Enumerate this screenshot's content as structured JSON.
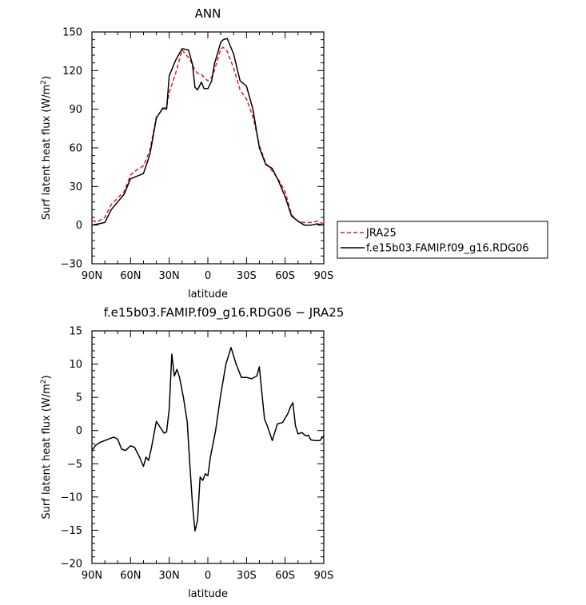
{
  "chart_data": [
    {
      "type": "line",
      "title": "ANN",
      "xlabel": "latitude",
      "ylabel": "Surf latent heat flux (W/m",
      "ylabel_sup": "2",
      "ylabel_end": ")",
      "xlim": [
        90,
        -90
      ],
      "ylim": [
        -30,
        150
      ],
      "yticks": [
        -30,
        0,
        30,
        60,
        90,
        120,
        150
      ],
      "xticks": [
        90,
        60,
        30,
        0,
        -30,
        -60,
        -90
      ],
      "xticklabels": [
        "90N",
        "60N",
        "30N",
        "0",
        "30S",
        "60S",
        "90S"
      ],
      "legend": {
        "placement": "right"
      },
      "series": [
        {
          "name": "JRA25",
          "color": "#e41a1c",
          "dash": true,
          "x": [
            90,
            85,
            80,
            75,
            70,
            65,
            60,
            55,
            50,
            45,
            40,
            35,
            32,
            30,
            25,
            20,
            15,
            12,
            10,
            8,
            5,
            3,
            0,
            -3,
            -5,
            -8,
            -10,
            -12,
            -15,
            -20,
            -25,
            -30,
            -35,
            -40,
            -45,
            -50,
            -55,
            -60,
            -65,
            -70,
            -75,
            -80,
            -85,
            -90
          ],
          "y": [
            3,
            3,
            6,
            16,
            21,
            26,
            39,
            43,
            46,
            58,
            84,
            90,
            92,
            103,
            118,
            136,
            130,
            125,
            120,
            118,
            117,
            115,
            112,
            115,
            120,
            130,
            137,
            138,
            135,
            122,
            105,
            98,
            84,
            62,
            48,
            42,
            35,
            26,
            8,
            3,
            2,
            2,
            3,
            1
          ]
        },
        {
          "name": "f.e15b03.FAMIP.f09_g16.RDG06",
          "color": "#000000",
          "dash": false,
          "x": [
            90,
            85,
            80,
            75,
            70,
            65,
            60,
            55,
            50,
            45,
            40,
            35,
            32,
            30,
            25,
            20,
            15,
            12,
            10,
            8,
            5,
            3,
            0,
            -3,
            -5,
            -8,
            -10,
            -12,
            -15,
            -20,
            -25,
            -30,
            -35,
            -40,
            -45,
            -50,
            -55,
            -60,
            -65,
            -70,
            -75,
            -80,
            -85,
            -90
          ],
          "y": [
            0,
            1,
            2,
            12,
            18,
            24,
            36,
            38,
            40,
            55,
            83,
            91,
            90,
            116,
            128,
            137,
            136,
            125,
            107,
            105,
            111,
            106,
            106,
            112,
            125,
            135,
            142,
            144,
            145,
            133,
            112,
            108,
            90,
            60,
            47,
            44,
            34,
            22,
            7,
            3,
            0,
            0,
            1,
            0
          ]
        }
      ]
    },
    {
      "type": "line",
      "title": "f.e15b03.FAMIP.f09_g16.RDG06 − JRA25",
      "xlabel": "latitude",
      "ylabel": "Surf latent heat flux (W/m",
      "ylabel_sup": "2",
      "ylabel_end": ")",
      "xlim": [
        90,
        -90
      ],
      "ylim": [
        -20,
        15
      ],
      "yticks": [
        -20,
        -15,
        -10,
        -5,
        0,
        5,
        10,
        15
      ],
      "xticks": [
        90,
        60,
        30,
        0,
        -30,
        -60,
        -90
      ],
      "xticklabels": [
        "90N",
        "60N",
        "30N",
        "0",
        "30S",
        "60S",
        "90S"
      ],
      "series": [
        {
          "color": "#000000",
          "dash": false,
          "x": [
            90,
            87,
            84,
            80,
            76,
            73,
            70,
            67,
            64,
            60,
            57,
            53,
            50,
            48,
            46,
            44,
            40,
            37,
            34,
            32,
            30,
            28,
            26,
            24,
            22,
            19,
            16,
            14,
            12,
            10,
            8,
            6,
            4,
            2,
            0,
            -2,
            -6,
            -10,
            -14,
            -18,
            -22,
            -26,
            -30,
            -34,
            -38,
            -40,
            -42,
            -44,
            -46,
            -50,
            -54,
            -58,
            -62,
            -64,
            -66,
            -68,
            -70,
            -73,
            -76,
            -78,
            -80,
            -83,
            -87,
            -90
          ],
          "y": [
            -3,
            -2.2,
            -1.8,
            -1.5,
            -1.2,
            -1,
            -1.3,
            -2.8,
            -3,
            -2.3,
            -2.5,
            -4,
            -5.4,
            -4,
            -4.5,
            -2.8,
            1.4,
            0.5,
            -0.4,
            -0.2,
            3.3,
            11.5,
            8.2,
            9.2,
            8,
            5,
            1.3,
            -5,
            -11,
            -15.1,
            -13.5,
            -7,
            -7.5,
            -6.5,
            -6.8,
            -4,
            0,
            5.4,
            10,
            12.5,
            10,
            8,
            8,
            7.8,
            8.2,
            9.6,
            5.5,
            1.7,
            0.8,
            -1.5,
            1,
            1.2,
            2.5,
            3.5,
            4.2,
            0.7,
            -0.5,
            -0.3,
            -0.8,
            -0.7,
            -1.4,
            -1.5,
            -1.5,
            -0.8
          ]
        }
      ]
    }
  ]
}
